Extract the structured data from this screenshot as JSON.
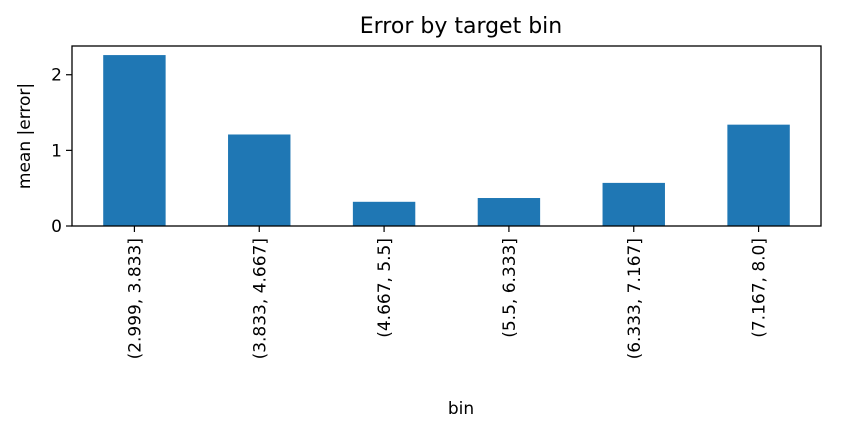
{
  "chart_data": {
    "type": "bar",
    "title": "Error by target bin",
    "xlabel": "bin",
    "ylabel": "mean |error|",
    "categories": [
      "(2.999, 3.833]",
      "(3.833, 4.667]",
      "(4.667, 5.5]",
      "(5.5, 6.333]",
      "(6.333, 7.167]",
      "(7.167, 8.0]"
    ],
    "values": [
      2.26,
      1.21,
      0.32,
      0.37,
      0.57,
      1.34
    ],
    "ylim": [
      0,
      2.38
    ],
    "yticks": [
      0,
      1,
      2
    ],
    "grid": false,
    "bar_color": "#1f77b4"
  }
}
